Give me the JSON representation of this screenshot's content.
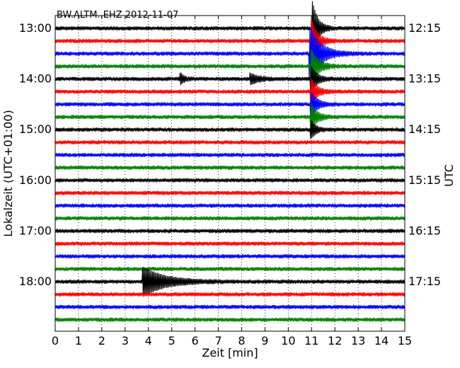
{
  "chart_data": {
    "type": "line",
    "title": "BW.ALTM..EHZ 2012-11-07",
    "xlabel": "Zeit  [min]",
    "ylabel_left": "Lokalzeit (UTC+01:00)",
    "ylabel_right": "UTC",
    "xlim": [
      0,
      15
    ],
    "x_ticks": [
      "0",
      "1",
      "2",
      "3",
      "4",
      "5",
      "6",
      "7",
      "8",
      "9",
      "10",
      "11",
      "12",
      "13",
      "14",
      "15"
    ],
    "grid": {
      "x": "dotted",
      "y": "none"
    },
    "left_tick_labels": [
      "13:00",
      "14:00",
      "15:00",
      "16:00",
      "17:00",
      "18:00"
    ],
    "right_tick_labels": [
      "12:15",
      "13:15",
      "14:15",
      "15:15",
      "16:15",
      "17:15"
    ],
    "trace_minutes": 15,
    "trace_count": 24,
    "colors": [
      "#000000",
      "#ff0000",
      "#0000ff",
      "#008000"
    ],
    "events": [
      {
        "trace": 0,
        "x": 11.05,
        "amp": 2.0,
        "decay": 0.22,
        "flip": true
      },
      {
        "trace": 1,
        "x": 11.0,
        "amp": 1.6,
        "decay": 0.25
      },
      {
        "trace": 2,
        "x": 10.95,
        "amp": 2.0,
        "decay": 0.45
      },
      {
        "trace": 3,
        "x": 11.0,
        "amp": 1.2,
        "decay": 0.3
      },
      {
        "trace": 4,
        "x": 11.0,
        "amp": 0.9,
        "decay": 0.25
      },
      {
        "trace": 5,
        "x": 11.0,
        "amp": 0.9,
        "decay": 0.25
      },
      {
        "trace": 6,
        "x": 11.0,
        "amp": 0.9,
        "decay": 0.25
      },
      {
        "trace": 7,
        "x": 11.0,
        "amp": 0.9,
        "decay": 0.25
      },
      {
        "trace": 8,
        "x": 11.0,
        "amp": 0.6,
        "decay": 0.2
      },
      {
        "trace": 4,
        "x": 5.4,
        "amp": 0.35,
        "decay": 0.15
      },
      {
        "trace": 4,
        "x": 8.4,
        "amp": 0.35,
        "decay": 0.35
      },
      {
        "trace": 20,
        "x": 3.8,
        "amp": 1.05,
        "decay": 0.9
      }
    ]
  }
}
